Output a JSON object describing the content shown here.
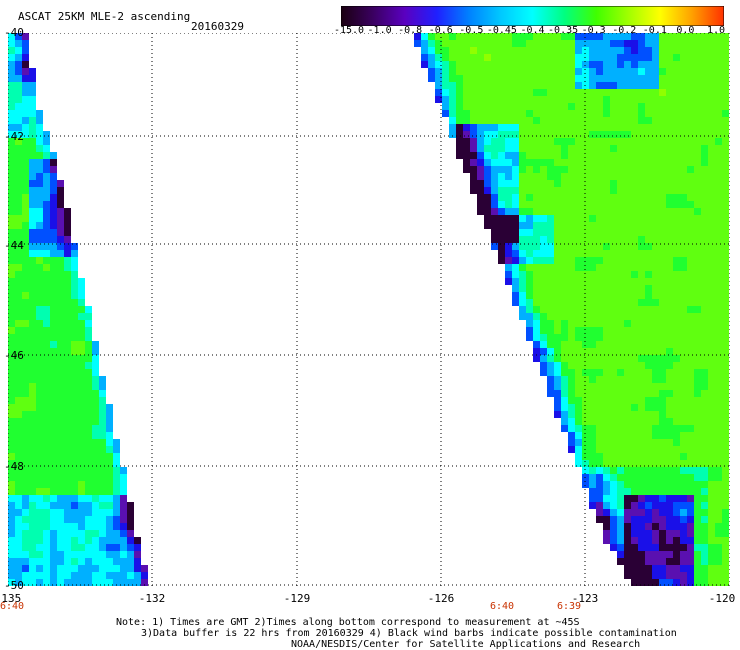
{
  "header": {
    "title": "ASCAT 25KM MLE-2 ascending",
    "date": "20160329"
  },
  "colorbar": {
    "labels": [
      "-15.0",
      "-1.0",
      "-0.8",
      "-0.6",
      "-0.5",
      "-0.45",
      "-0.4",
      "-0.35",
      "-0.3",
      "-0.2",
      "-0.1",
      "0.0",
      "1.0"
    ],
    "colors": [
      "#1a0010",
      "#3a0060",
      "#5a00c0",
      "#2020ff",
      "#0080ff",
      "#00c8ff",
      "#00ffff",
      "#00ff80",
      "#40ff00",
      "#a0ff00",
      "#ffff00",
      "#ffa000",
      "#ff3000"
    ]
  },
  "map": {
    "x_ticks": [
      "-135",
      "-132",
      "-129",
      "-126",
      "-123",
      "-120"
    ],
    "y_ticks": [
      "-40",
      "-42",
      "-44",
      "-46",
      "-48",
      "-50"
    ],
    "time_labels": [
      "6:40",
      "6:40",
      "6:39"
    ],
    "lon_range": [
      -135,
      -120
    ],
    "lat_range": [
      -40,
      -50
    ],
    "grid": true
  },
  "notes": [
    "Note: 1) Times are GMT 2)Times along bottom correspond to measurement at ~45S",
    "3)Data buffer is 22 hrs from 20160329 4) Black wind barbs indicate possible contamination",
    "NOAA/NESDIS/Center for Satellite Applications and Research"
  ]
}
